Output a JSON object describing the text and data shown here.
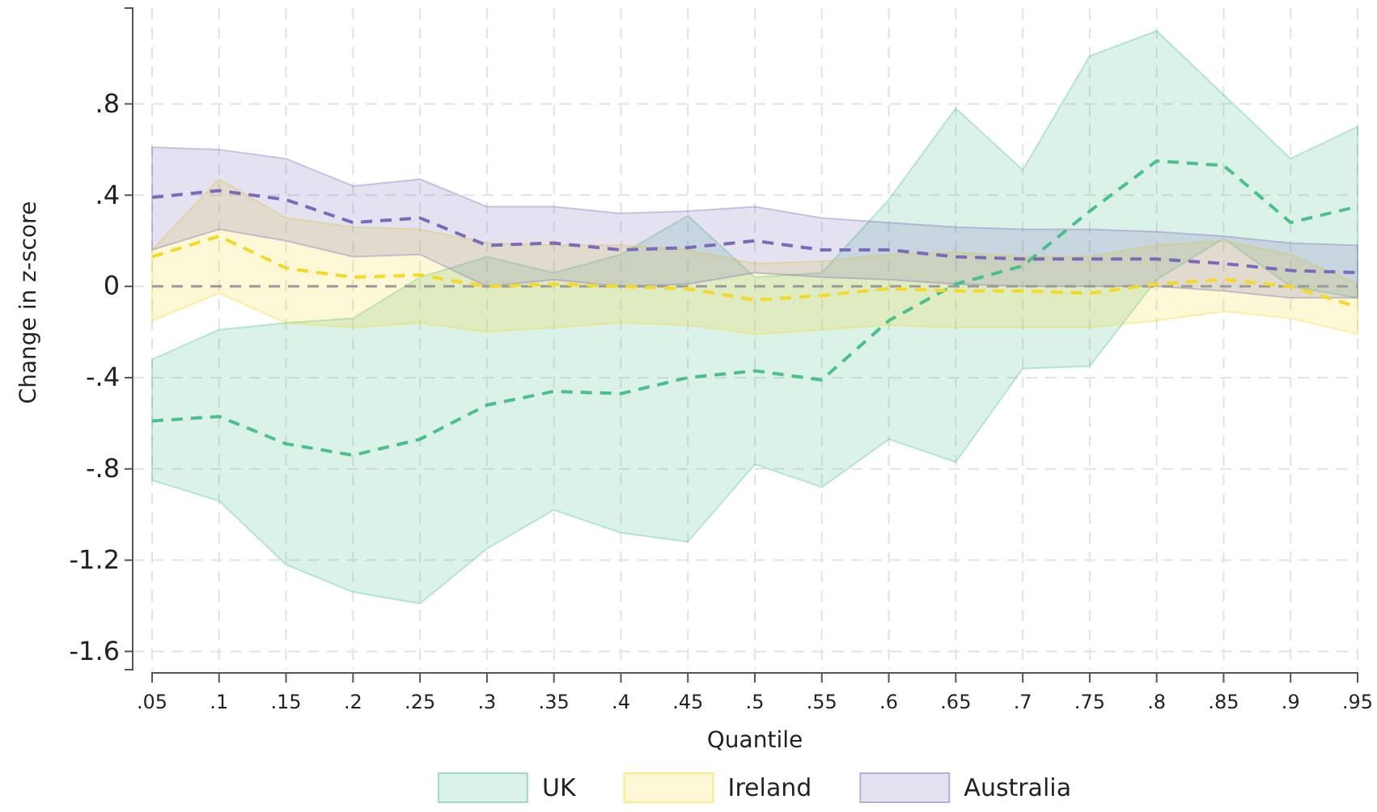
{
  "chart_data": {
    "type": "line",
    "xlabel": "Quantile",
    "ylabel": "Change in z-score",
    "x": [
      0.05,
      0.1,
      0.15,
      0.2,
      0.25,
      0.3,
      0.35,
      0.4,
      0.45,
      0.5,
      0.55,
      0.6,
      0.65,
      0.7,
      0.75,
      0.8,
      0.85,
      0.9,
      0.95
    ],
    "xlim": [
      0.05,
      0.95
    ],
    "xticks": [
      {
        "value": 0.05,
        "label": ".05"
      },
      {
        "value": 0.1,
        "label": ".1"
      },
      {
        "value": 0.15,
        "label": ".15"
      },
      {
        "value": 0.2,
        "label": ".2"
      },
      {
        "value": 0.25,
        "label": ".25"
      },
      {
        "value": 0.3,
        "label": ".3"
      },
      {
        "value": 0.35,
        "label": ".35"
      },
      {
        "value": 0.4,
        "label": ".4"
      },
      {
        "value": 0.45,
        "label": ".45"
      },
      {
        "value": 0.5,
        "label": ".5"
      },
      {
        "value": 0.55,
        "label": ".55"
      },
      {
        "value": 0.6,
        "label": ".6"
      },
      {
        "value": 0.65,
        "label": ".65"
      },
      {
        "value": 0.7,
        "label": ".7"
      },
      {
        "value": 0.75,
        "label": ".75"
      },
      {
        "value": 0.8,
        "label": ".8"
      },
      {
        "value": 0.85,
        "label": ".85"
      },
      {
        "value": 0.9,
        "label": ".9"
      },
      {
        "value": 0.95,
        "label": ".95"
      }
    ],
    "ylim": [
      -1.68,
      1.22
    ],
    "yticks": [
      {
        "value": -1.6,
        "label": "-1.6"
      },
      {
        "value": -1.2,
        "label": "-1.2"
      },
      {
        "value": -0.8,
        "label": "-.8"
      },
      {
        "value": -0.4,
        "label": "-.4"
      },
      0,
      {
        "value": 0.4,
        "label": ".4"
      },
      {
        "value": 0.8,
        "label": ".8"
      }
    ],
    "grid": true,
    "legend": "bottom",
    "line_style": "dashed",
    "marker": "none",
    "ref_lines": [
      {
        "axis": "y",
        "value": 0,
        "color": "#9a9a9a",
        "line_style": "dashed"
      }
    ],
    "series": [
      {
        "name": "UK",
        "color": "#4cbf8c",
        "values": [
          -0.59,
          -0.57,
          -0.69,
          -0.74,
          -0.67,
          -0.52,
          -0.46,
          -0.47,
          -0.4,
          -0.37,
          -0.41,
          -0.15,
          0.01,
          0.09,
          0.33,
          0.55,
          0.53,
          0.28,
          0.35
        ],
        "lower": [
          -0.85,
          -0.94,
          -1.22,
          -1.34,
          -1.39,
          -1.15,
          -0.98,
          -1.08,
          -1.12,
          -0.78,
          -0.88,
          -0.67,
          -0.77,
          -0.36,
          -0.35,
          0.03,
          0.21,
          0.0,
          -0.05
        ],
        "upper": [
          -0.32,
          -0.19,
          -0.16,
          -0.14,
          0.04,
          0.13,
          0.06,
          0.14,
          0.31,
          0.04,
          0.06,
          0.38,
          0.78,
          0.51,
          1.01,
          1.12,
          0.84,
          0.56,
          0.7
        ]
      },
      {
        "name": "Ireland",
        "color": "#f2d92a",
        "values": [
          0.13,
          0.22,
          0.08,
          0.04,
          0.05,
          0.0,
          0.01,
          0.0,
          -0.01,
          -0.06,
          -0.04,
          -0.01,
          -0.02,
          -0.02,
          -0.03,
          0.01,
          0.03,
          0.0,
          -0.09
        ],
        "lower": [
          -0.15,
          -0.03,
          -0.16,
          -0.18,
          -0.16,
          -0.2,
          -0.18,
          -0.16,
          -0.17,
          -0.21,
          -0.19,
          -0.17,
          -0.18,
          -0.18,
          -0.18,
          -0.15,
          -0.11,
          -0.14,
          -0.21
        ],
        "upper": [
          0.16,
          0.47,
          0.3,
          0.26,
          0.25,
          0.19,
          0.18,
          0.18,
          0.16,
          0.1,
          0.11,
          0.14,
          0.15,
          0.13,
          0.13,
          0.18,
          0.2,
          0.14,
          0.01
        ]
      },
      {
        "name": "Australia",
        "color": "#7a6bb8",
        "values": [
          0.39,
          0.42,
          0.38,
          0.28,
          0.3,
          0.18,
          0.19,
          0.16,
          0.17,
          0.2,
          0.16,
          0.16,
          0.13,
          0.12,
          0.12,
          0.12,
          0.1,
          0.07,
          0.06
        ],
        "lower": [
          0.16,
          0.25,
          0.2,
          0.13,
          0.14,
          0.0,
          0.03,
          0.0,
          0.01,
          0.06,
          0.04,
          0.03,
          0.01,
          0.0,
          0.0,
          0.0,
          -0.02,
          -0.05,
          -0.05
        ],
        "upper": [
          0.61,
          0.6,
          0.56,
          0.44,
          0.47,
          0.35,
          0.35,
          0.32,
          0.33,
          0.35,
          0.3,
          0.28,
          0.26,
          0.25,
          0.25,
          0.24,
          0.22,
          0.19,
          0.18
        ]
      }
    ]
  }
}
